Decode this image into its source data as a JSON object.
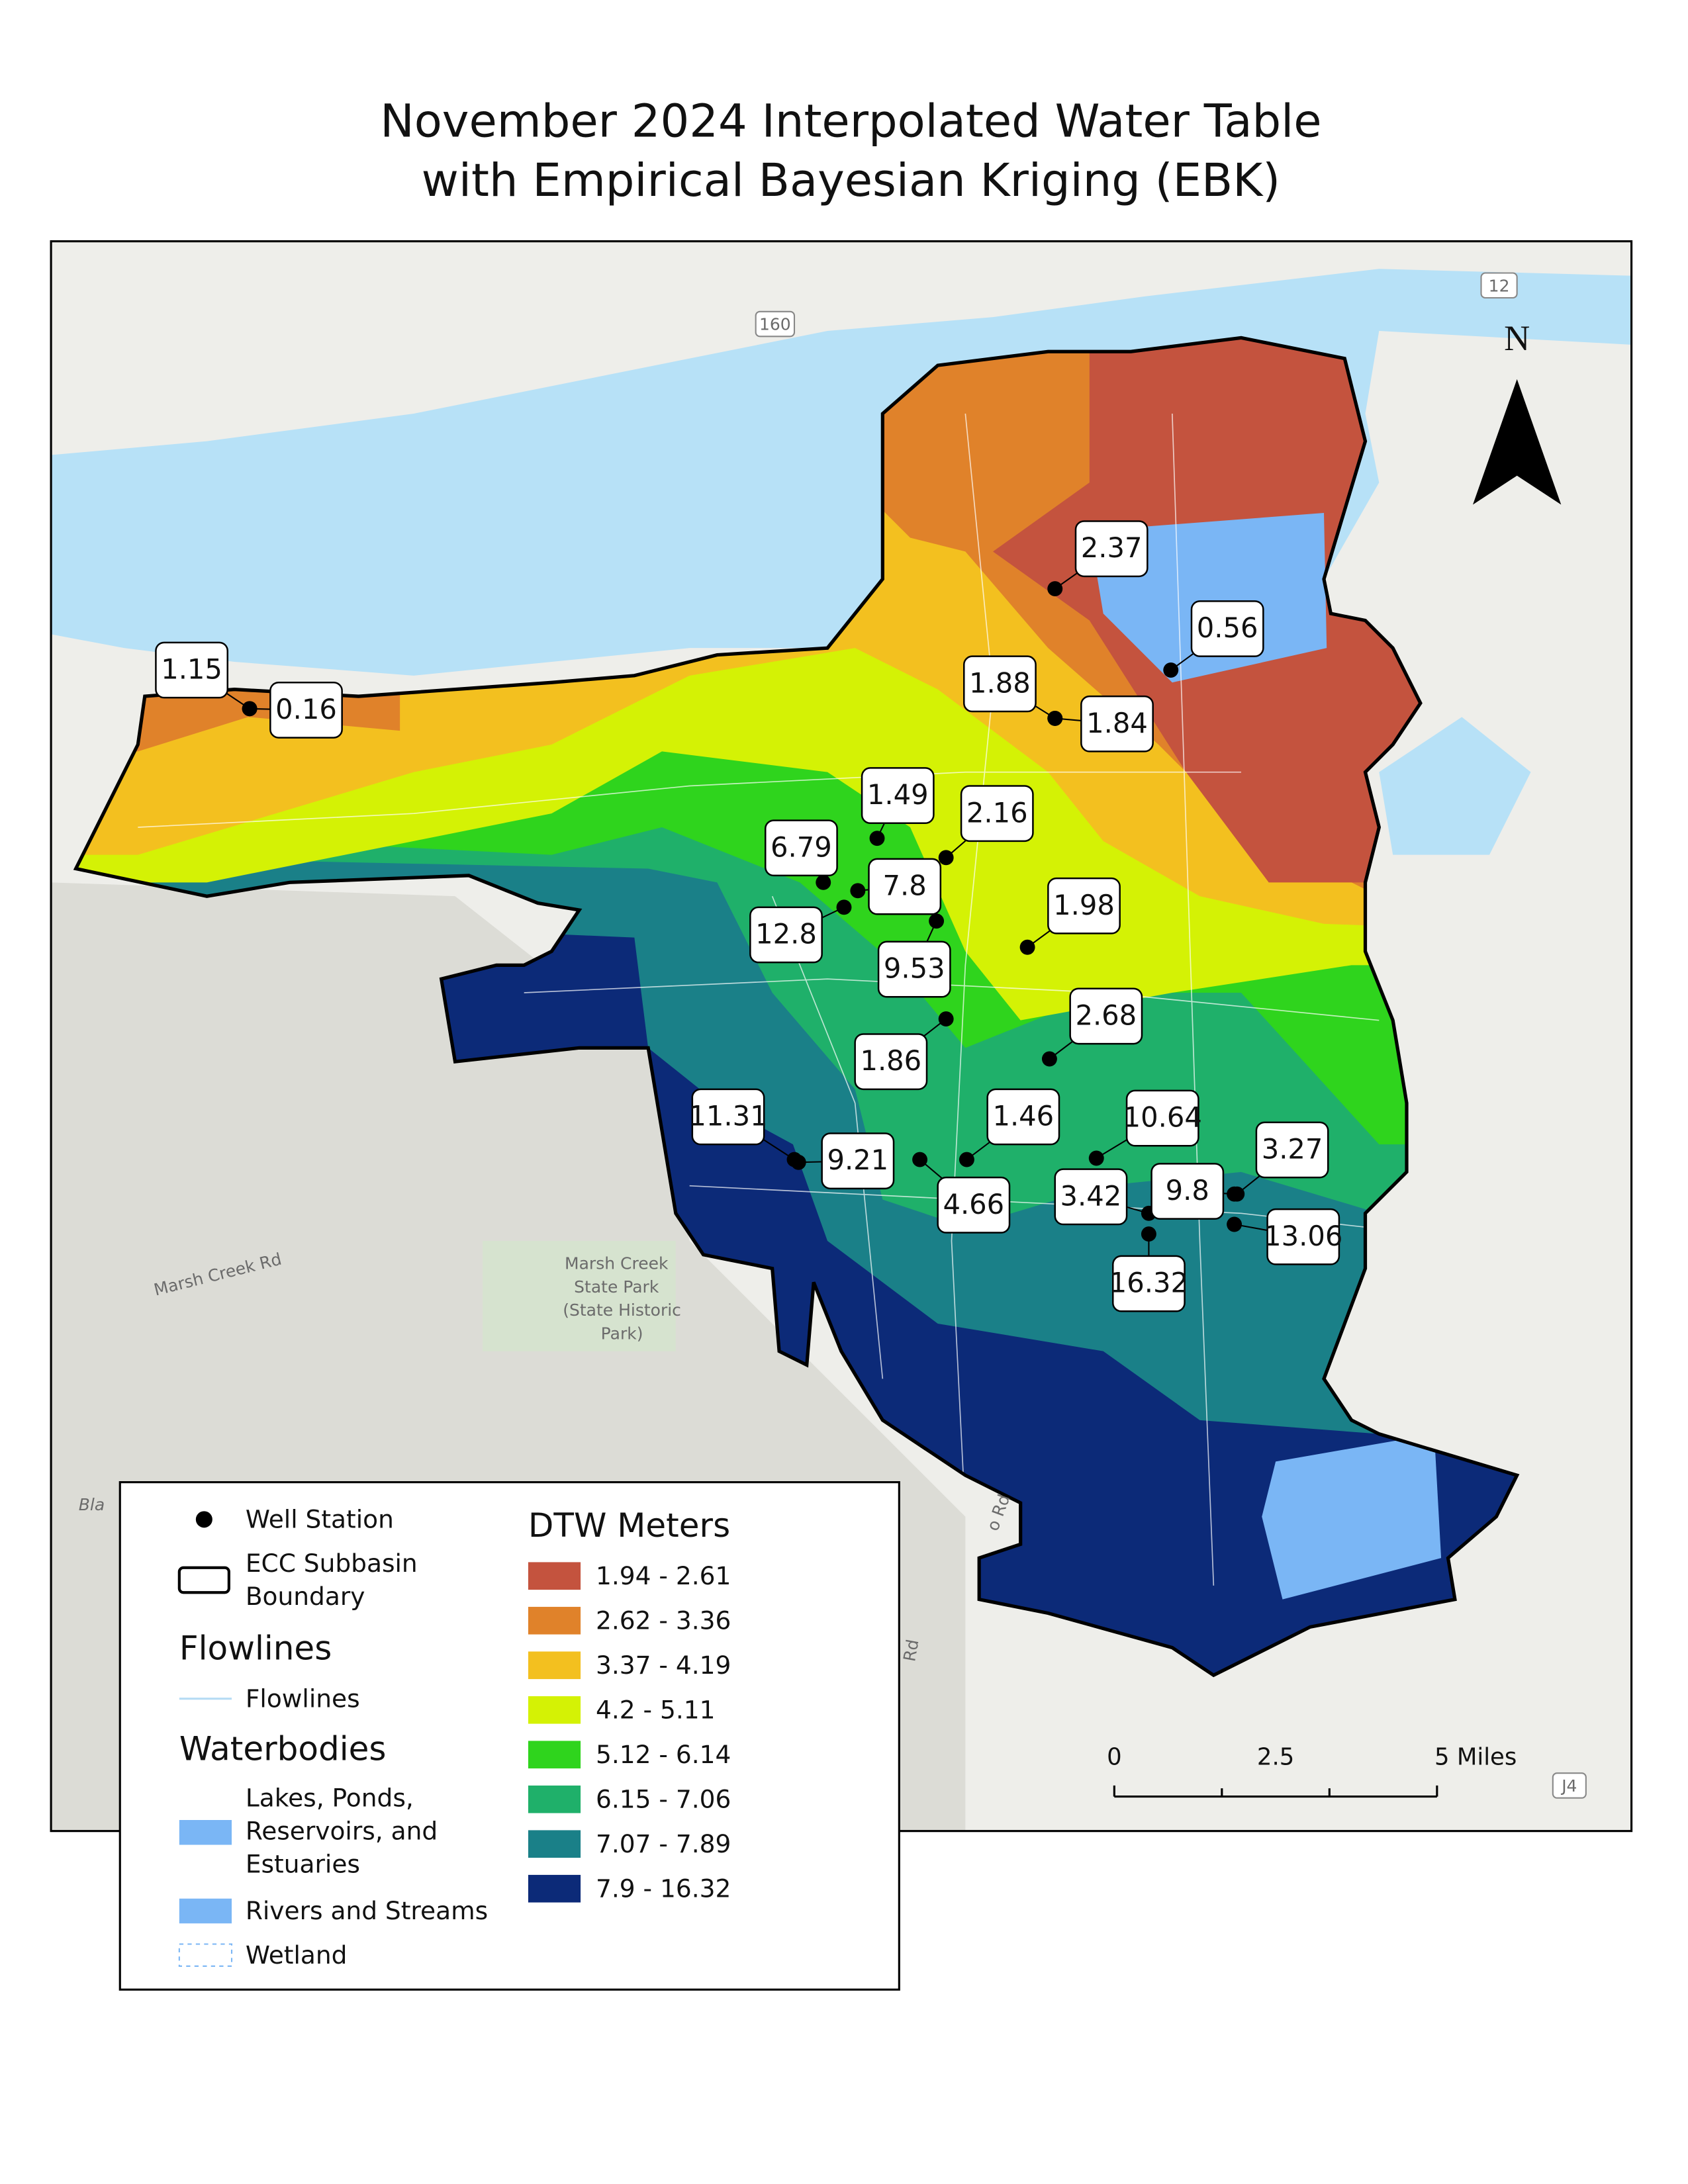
{
  "title": [
    "November 2024 Interpolated Water Table",
    "with Empirical Bayesian Kriging (EBK)"
  ],
  "map_labels": {
    "routes": [
      "160",
      "12",
      "J4"
    ],
    "road": "Marsh Creek Rd",
    "park": [
      "Marsh Creek",
      "State Park",
      "(State Historic",
      "Park)"
    ],
    "partial": [
      "Bla",
      "o Rd",
      "Rd"
    ]
  },
  "north": "N",
  "wells": [
    1.15,
    0.16,
    2.37,
    0.56,
    1.88,
    1.84,
    1.49,
    2.16,
    6.79,
    7.8,
    12.8,
    9.53,
    1.98,
    1.86,
    2.68,
    11.31,
    9.21,
    1.46,
    4.66,
    10.64,
    3.42,
    9.8,
    3.27,
    13.06,
    16.32
  ],
  "legend": {
    "well_station": "Well Station",
    "boundary": [
      "ECC Subbasin",
      "Boundary"
    ],
    "flowlines_heading": "Flowlines",
    "flowlines": "Flowlines",
    "waterbodies_heading": "Waterbodies",
    "lakes": [
      "Lakes, Ponds,",
      "Reservoirs, and",
      "Estuaries"
    ],
    "rivers": "Rivers and Streams",
    "wetland": "Wetland",
    "dtw_heading": "DTW Meters",
    "classes": [
      {
        "label": "1.94 - 2.61",
        "color": "#c4533e"
      },
      {
        "label": "2.62 - 3.36",
        "color": "#e0822a"
      },
      {
        "label": "3.37 - 4.19",
        "color": "#f3c01f"
      },
      {
        "label": "4.2 - 5.11",
        "color": "#d4f205"
      },
      {
        "label": "5.12 - 6.14",
        "color": "#2fd41d"
      },
      {
        "label": "6.15 - 7.06",
        "color": "#1fb06a"
      },
      {
        "label": "7.07 - 7.89",
        "color": "#1a8088"
      },
      {
        "label": "7.9 - 16.32",
        "color": "#0c2a78"
      }
    ]
  },
  "scale_bar": [
    "0",
    "2.5",
    "5 Miles"
  ]
}
